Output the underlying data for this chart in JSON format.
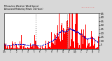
{
  "bg_color": "#d8d8d8",
  "plot_bg_color": "#ffffff",
  "bar_color": "#ff0000",
  "median_color": "#0000cc",
  "n_points": 1440,
  "ylim": [
    0,
    45
  ],
  "yticks": [
    5,
    10,
    15,
    20,
    25,
    30,
    35,
    40,
    45
  ],
  "vline_x": [
    0.333,
    0.667
  ],
  "legend_blue_color": "#0000ff",
  "legend_red_color": "#ff0000",
  "seed": 17
}
